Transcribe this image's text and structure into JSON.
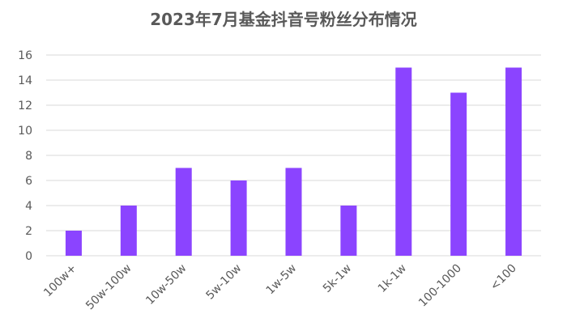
{
  "chart_data": {
    "type": "bar",
    "title": "2023年7月基金抖音号粉丝分布情况",
    "categories": [
      "100w+",
      "50w-100w",
      "10w-50w",
      "5w-10w",
      "1w-5w",
      "5k-1w",
      "1k-1w",
      "100-1000",
      "<100"
    ],
    "values": [
      2,
      4,
      7,
      6,
      7,
      4,
      15,
      13,
      15
    ],
    "ylim": [
      0,
      16
    ],
    "yticks": [
      0,
      2,
      4,
      6,
      8,
      10,
      12,
      14,
      16
    ],
    "grid": true,
    "legend": "none",
    "bar_color": "#8B44FF",
    "grid_color": "#D9D9D9",
    "text_color": "#595959"
  }
}
